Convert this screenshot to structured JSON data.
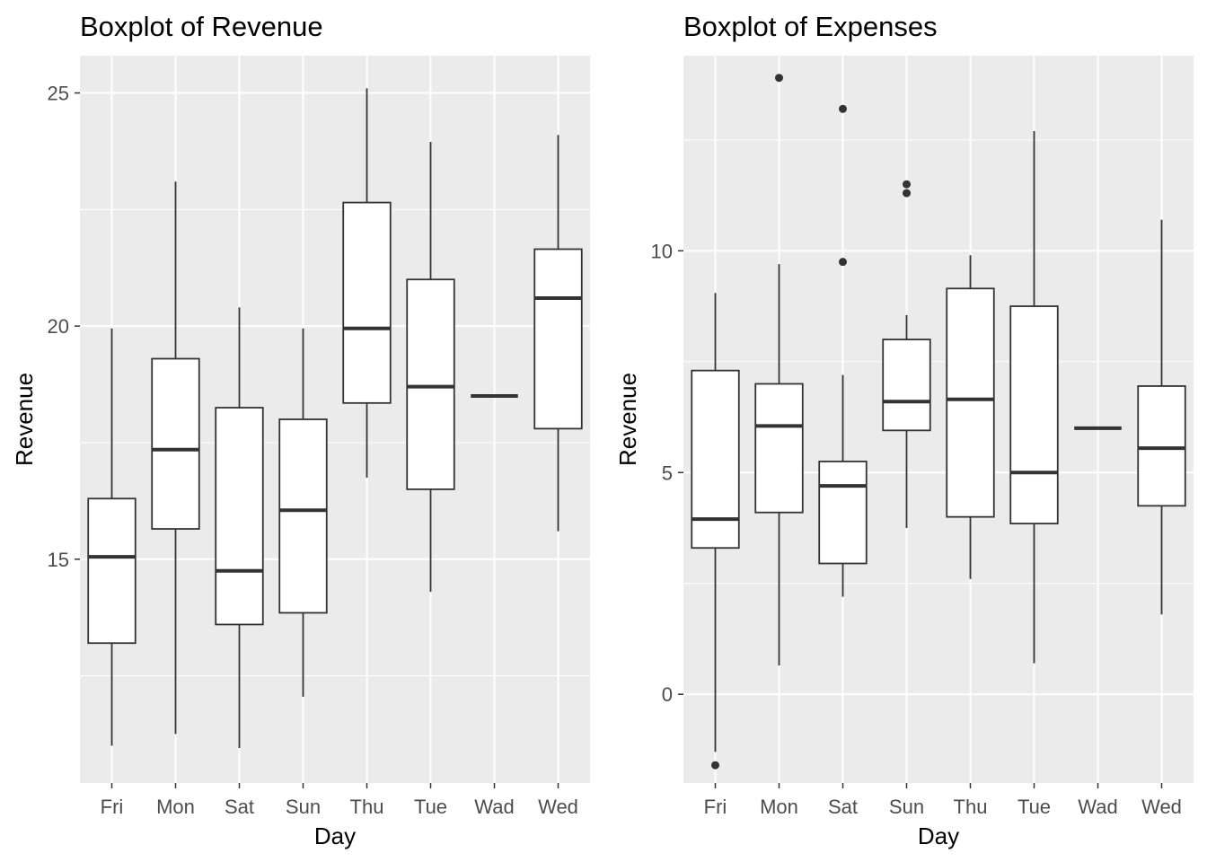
{
  "charts": [
    {
      "title": "Boxplot of Revenue",
      "xlabel": "Day",
      "ylabel": "Revenue"
    },
    {
      "title": "Boxplot of Expenses",
      "xlabel": "Day",
      "ylabel": "Revenue"
    }
  ],
  "chart_data": [
    {
      "type": "boxplot",
      "title": "Boxplot of Revenue",
      "xlabel": "Day",
      "ylabel": "Revenue",
      "categories": [
        "Fri",
        "Mon",
        "Sat",
        "Sun",
        "Thu",
        "Tue",
        "Wad",
        "Wed"
      ],
      "ylim": [
        10.2,
        25.8
      ],
      "yticks": [
        15,
        20,
        25
      ],
      "grid": true,
      "boxes": [
        {
          "category": "Fri",
          "min": 11.0,
          "q1": 13.2,
          "median": 15.05,
          "q3": 16.3,
          "max": 19.95,
          "outliers": []
        },
        {
          "category": "Mon",
          "min": 11.25,
          "q1": 15.65,
          "median": 17.35,
          "q3": 19.3,
          "max": 23.1,
          "outliers": []
        },
        {
          "category": "Sat",
          "min": 10.95,
          "q1": 13.6,
          "median": 14.75,
          "q3": 18.25,
          "max": 20.4,
          "outliers": []
        },
        {
          "category": "Sun",
          "min": 12.05,
          "q1": 13.85,
          "median": 16.05,
          "q3": 18.0,
          "max": 19.95,
          "outliers": []
        },
        {
          "category": "Thu",
          "min": 16.75,
          "q1": 18.35,
          "median": 19.95,
          "q3": 22.65,
          "max": 25.1,
          "outliers": []
        },
        {
          "category": "Tue",
          "min": 14.3,
          "q1": 16.5,
          "median": 18.7,
          "q3": 21.0,
          "max": 23.95,
          "outliers": []
        },
        {
          "category": "Wad",
          "min": 18.5,
          "q1": 18.5,
          "median": 18.5,
          "q3": 18.5,
          "max": 18.5,
          "outliers": []
        },
        {
          "category": "Wed",
          "min": 15.6,
          "q1": 17.8,
          "median": 20.6,
          "q3": 21.65,
          "max": 24.1,
          "outliers": []
        }
      ]
    },
    {
      "type": "boxplot",
      "title": "Boxplot of Expenses",
      "xlabel": "Day",
      "ylabel": "Revenue",
      "categories": [
        "Fri",
        "Mon",
        "Sat",
        "Sun",
        "Thu",
        "Tue",
        "Wad",
        "Wed"
      ],
      "ylim": [
        -2.0,
        14.4
      ],
      "yticks": [
        0,
        5,
        10
      ],
      "grid": true,
      "boxes": [
        {
          "category": "Fri",
          "min": -1.3,
          "q1": 3.3,
          "median": 3.95,
          "q3": 7.3,
          "max": 9.05,
          "outliers": [
            -1.6
          ]
        },
        {
          "category": "Mon",
          "min": 0.65,
          "q1": 4.1,
          "median": 6.05,
          "q3": 7.0,
          "max": 9.7,
          "outliers": [
            13.9
          ]
        },
        {
          "category": "Sat",
          "min": 2.2,
          "q1": 2.95,
          "median": 4.7,
          "q3": 5.25,
          "max": 7.2,
          "outliers": [
            13.2,
            9.75
          ]
        },
        {
          "category": "Sun",
          "min": 3.75,
          "q1": 5.95,
          "median": 6.6,
          "q3": 8.0,
          "max": 8.55,
          "outliers": [
            11.5,
            11.3
          ]
        },
        {
          "category": "Thu",
          "min": 2.6,
          "q1": 4.0,
          "median": 6.65,
          "q3": 9.15,
          "max": 9.9,
          "outliers": []
        },
        {
          "category": "Tue",
          "min": 0.7,
          "q1": 3.85,
          "median": 5.0,
          "q3": 8.75,
          "max": 12.7,
          "outliers": []
        },
        {
          "category": "Wad",
          "min": 6.0,
          "q1": 6.0,
          "median": 6.0,
          "q3": 6.0,
          "max": 6.0,
          "outliers": []
        },
        {
          "category": "Wed",
          "min": 1.8,
          "q1": 4.25,
          "median": 5.55,
          "q3": 6.95,
          "max": 10.7,
          "outliers": []
        }
      ]
    }
  ]
}
